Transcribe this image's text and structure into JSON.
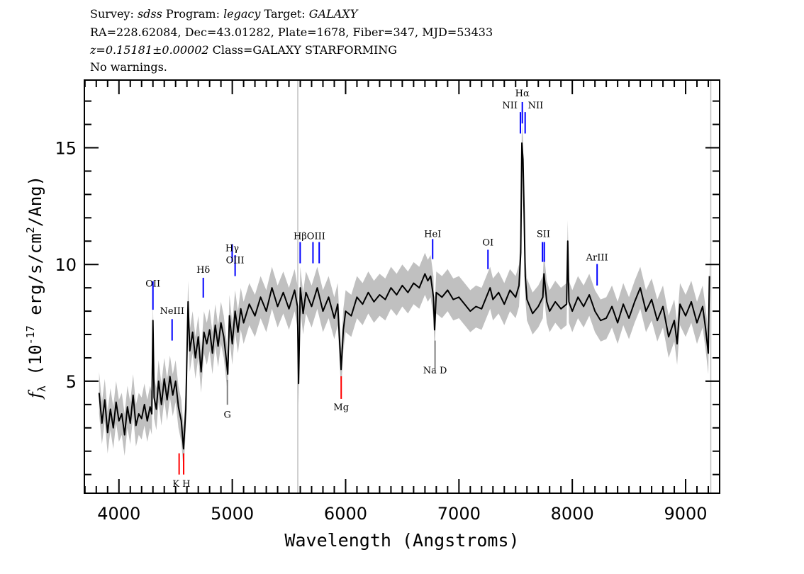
{
  "header": {
    "survey_label": "Survey:",
    "survey": "sdss",
    "program_label": "Program:",
    "program": "legacy",
    "target_label": "Target:",
    "target": "GALAXY",
    "line2": "RA=228.62084, Dec=43.01282, Plate=1678, Fiber=347, MJD=53433",
    "redshift": "z=0.15181±0.00002",
    "class": "Class=GALAXY STARFORMING",
    "warnings": "No warnings."
  },
  "chart_data": {
    "type": "line",
    "xlabel": "Wavelength (Angstroms)",
    "ylabel": {
      "symbol": "f",
      "subscript": "λ",
      "prefix": " (10",
      "exponent": "-17",
      "middle": " erg/s/cm",
      "exponent2": "2",
      "suffix": "/Ang)"
    },
    "xlim": [
      3695,
      9300
    ],
    "ylim": [
      0.2,
      17.9
    ],
    "xticks": [
      4000,
      5000,
      6000,
      7000,
      8000,
      9000
    ],
    "xtick_labels": [
      "4000",
      "5000",
      "6000",
      "7000",
      "8000",
      "9000"
    ],
    "yticks": [
      5,
      10,
      15
    ],
    "ytick_labels": [
      "5",
      "10",
      "15"
    ],
    "grid": false,
    "colors": {
      "flux": "#000000",
      "noise_band": "#c0c0c0",
      "emission": "#0000ff",
      "absorption": "#ff0000",
      "sky": "#c0c0c0"
    },
    "flux_err": 0.9,
    "vertical_lines": [
      5578,
      9222
    ],
    "series": [
      {
        "x": [
          3825,
          3850,
          3875,
          3900,
          3925,
          3950,
          3975,
          4000,
          4025,
          4050,
          4075,
          4100,
          4125,
          4150,
          4175,
          4200,
          4225,
          4250,
          4275,
          4290,
          4300,
          4310,
          4330,
          4350,
          4375,
          4400,
          4425,
          4450,
          4475,
          4500,
          4525,
          4550,
          4570,
          4590,
          4610,
          4625,
          4650,
          4675,
          4700,
          4725,
          4750,
          4775,
          4800,
          4825,
          4850,
          4875,
          4900,
          4925,
          4950,
          4960,
          4975,
          5000,
          5025,
          5050,
          5075,
          5100,
          5150,
          5200,
          5250,
          5300,
          5350,
          5400,
          5450,
          5500,
          5550,
          5575,
          5585,
          5600,
          5625,
          5650,
          5700,
          5750,
          5800,
          5850,
          5900,
          5930,
          5960,
          5980,
          6000,
          6050,
          6100,
          6150,
          6200,
          6250,
          6300,
          6350,
          6400,
          6450,
          6500,
          6550,
          6600,
          6650,
          6700,
          6725,
          6750,
          6775,
          6785,
          6800,
          6850,
          6900,
          6950,
          7000,
          7050,
          7100,
          7150,
          7200,
          7250,
          7275,
          7300,
          7350,
          7400,
          7450,
          7500,
          7530,
          7545,
          7555,
          7565,
          7575,
          7585,
          7600,
          7650,
          7700,
          7740,
          7750,
          7775,
          7800,
          7850,
          7900,
          7950,
          7960,
          7970,
          8000,
          8050,
          8100,
          8150,
          8200,
          8250,
          8300,
          8350,
          8400,
          8450,
          8500,
          8550,
          8600,
          8650,
          8700,
          8750,
          8800,
          8850,
          8900,
          8925,
          8950,
          9000,
          9050,
          9100,
          9150,
          9175,
          9200,
          9210
        ],
        "y": [
          4.5,
          3.2,
          4.2,
          2.8,
          3.8,
          3.0,
          4.1,
          3.3,
          3.6,
          2.7,
          3.9,
          3.2,
          4.4,
          3.1,
          3.6,
          3.4,
          4.0,
          3.3,
          3.9,
          3.6,
          7.6,
          4.3,
          3.8,
          5.0,
          4.0,
          5.1,
          4.2,
          5.2,
          4.4,
          5.0,
          3.9,
          3.3,
          2.1,
          3.8,
          8.4,
          6.3,
          7.1,
          6.0,
          6.9,
          5.4,
          7.1,
          6.6,
          7.2,
          6.2,
          7.4,
          6.5,
          7.5,
          6.9,
          5.8,
          5.3,
          7.8,
          6.6,
          8.0,
          7.1,
          8.1,
          7.5,
          8.3,
          7.8,
          8.6,
          8.0,
          9.0,
          8.2,
          8.8,
          8.1,
          8.9,
          8.2,
          4.9,
          9.0,
          7.9,
          8.8,
          8.2,
          9.0,
          8.0,
          8.6,
          7.7,
          8.3,
          5.5,
          7.2,
          8.0,
          7.8,
          8.6,
          8.3,
          8.8,
          8.4,
          8.7,
          8.5,
          9.0,
          8.7,
          9.1,
          8.8,
          9.2,
          9.0,
          9.6,
          9.3,
          9.5,
          8.6,
          7.2,
          8.8,
          8.6,
          8.9,
          8.5,
          8.6,
          8.3,
          8.0,
          8.2,
          8.1,
          8.7,
          9.0,
          8.5,
          8.8,
          8.3,
          8.9,
          8.6,
          9.1,
          10.5,
          15.2,
          14.5,
          12.2,
          9.5,
          8.5,
          7.9,
          8.2,
          8.6,
          9.6,
          8.4,
          8.0,
          8.4,
          8.1,
          8.3,
          11.0,
          8.4,
          8.0,
          8.6,
          8.2,
          8.7,
          8.0,
          7.6,
          7.7,
          8.2,
          7.5,
          8.3,
          7.7,
          8.4,
          9.0,
          8.0,
          8.5,
          7.6,
          8.2,
          6.9,
          7.6,
          6.6,
          8.3,
          7.8,
          8.4,
          7.5,
          8.2,
          7.3,
          6.2,
          9.5
        ]
      }
    ],
    "line_markers": [
      {
        "label": "OII",
        "waves": [
          4300
        ],
        "kind": "emission",
        "y_from": 8.06,
        "y_to": 9.28,
        "label_y": 9.2
      },
      {
        "label": "NeIII",
        "waves": [
          4469
        ],
        "kind": "emission",
        "y_from": 6.74,
        "y_to": 7.66,
        "label_y": 8.03
      },
      {
        "label": "Hδ",
        "waves": [
          4744
        ],
        "kind": "emission",
        "y_from": 8.58,
        "y_to": 9.43,
        "label_y": 9.8
      },
      {
        "label": "Hγ",
        "waves": [
          4999
        ],
        "kind": "emission",
        "y_from": 10.1,
        "y_to": 10.87,
        "label_y": 10.72
      },
      {
        "label": "OIII",
        "waves": [
          5025
        ],
        "kind": "emission",
        "y_from": 9.5,
        "y_to": 10.4,
        "label_y": 10.2
      },
      {
        "label": "Hβ",
        "waves": [
          5599
        ],
        "kind": "emission",
        "y_from": 10.05,
        "y_to": 10.96,
        "label_y": 11.24
      },
      {
        "label": "OIII",
        "waves": [
          5712,
          5767
        ],
        "kind": "emission",
        "y_from": 10.05,
        "y_to": 10.96,
        "label_y": 11.24
      },
      {
        "label": "HeI",
        "waves": [
          6768
        ],
        "kind": "emission",
        "y_from": 10.23,
        "y_to": 11.09,
        "label_y": 11.33
      },
      {
        "label": "OI",
        "waves": [
          7256
        ],
        "kind": "emission",
        "y_from": 9.8,
        "y_to": 10.63,
        "label_y": 10.96
      },
      {
        "label": "Hα",
        "waves": [
          7559
        ],
        "kind": "emission",
        "y_from": 16.04,
        "y_to": 16.96,
        "label_y": 17.35
      },
      {
        "label": "NII",
        "waves": [
          7542
        ],
        "kind": "emission",
        "y_from": 15.61,
        "y_to": 16.53,
        "label_y": 16.83,
        "align": "left"
      },
      {
        "label": "NII",
        "waves": [
          7584
        ],
        "kind": "emission",
        "y_from": 15.61,
        "y_to": 16.53,
        "label_y": 16.83,
        "align": "right"
      },
      {
        "label": "SII",
        "waves": [
          7737,
          7753
        ],
        "kind": "emission",
        "y_from": 10.11,
        "y_to": 10.96,
        "label_y": 11.33
      },
      {
        "label": "ArIII",
        "waves": [
          8219
        ],
        "kind": "emission",
        "y_from": 9.1,
        "y_to": 10.02,
        "label_y": 10.32
      },
      {
        "label": "K H",
        "waves": [
          4531,
          4571
        ],
        "kind": "absorption",
        "y_from": 1.0,
        "y_to": 1.91,
        "label_y": 0.63
      },
      {
        "label": "G",
        "waves": [
          4957
        ],
        "kind": "neutral",
        "y_from": 3.99,
        "y_to": 5.06,
        "label_y": 3.59
      },
      {
        "label": "Mg",
        "waves": [
          5961
        ],
        "kind": "absorption",
        "y_from": 4.24,
        "y_to": 5.21,
        "label_y": 3.9
      },
      {
        "label": "Na D",
        "waves": [
          6789
        ],
        "kind": "neutral",
        "y_from": 5.52,
        "y_to": 6.74,
        "label_y": 5.49
      }
    ]
  }
}
